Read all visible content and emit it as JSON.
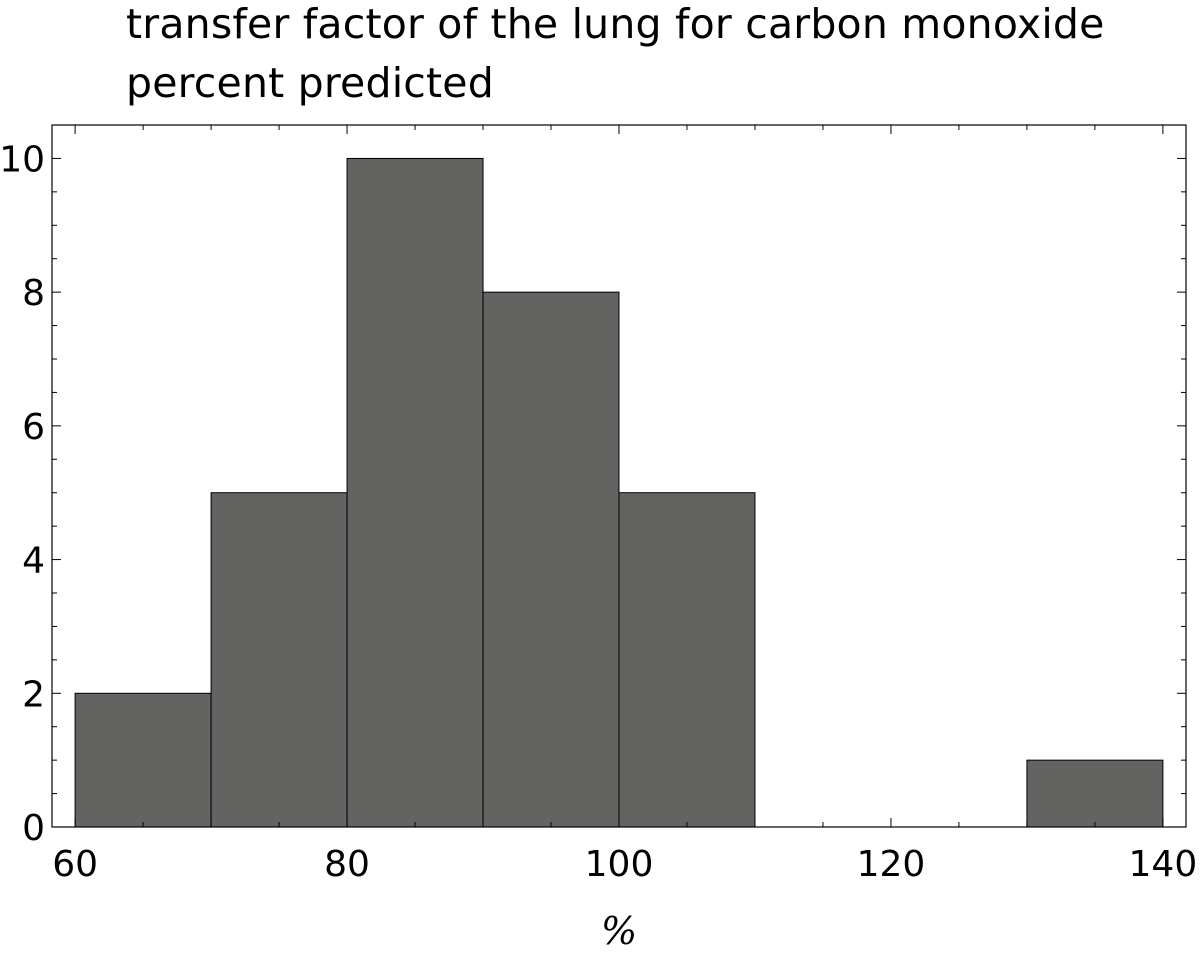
{
  "chart_data": {
    "type": "bar",
    "title_lines": [
      "transfer factor of the lung for carbon monoxide",
      "percent predicted"
    ],
    "xlabel": "%",
    "ylabel": "",
    "bins": [
      {
        "start": 60,
        "end": 70,
        "count": 2
      },
      {
        "start": 70,
        "end": 80,
        "count": 5
      },
      {
        "start": 80,
        "end": 90,
        "count": 10
      },
      {
        "start": 90,
        "end": 100,
        "count": 8
      },
      {
        "start": 100,
        "end": 110,
        "count": 5
      },
      {
        "start": 130,
        "end": 140,
        "count": 1
      }
    ],
    "xlim": [
      58.3,
      141.7
    ],
    "ylim": [
      0,
      10.5
    ],
    "x_ticks": [
      60,
      80,
      100,
      120,
      140
    ],
    "y_ticks": [
      0,
      2,
      4,
      6,
      8,
      10
    ],
    "x_tick_labels": [
      "60",
      "80",
      "100",
      "120",
      "140"
    ],
    "y_tick_labels": [
      "0",
      "2",
      "4",
      "6",
      "8",
      "10"
    ],
    "bar_color": "#636362",
    "grid": false
  }
}
